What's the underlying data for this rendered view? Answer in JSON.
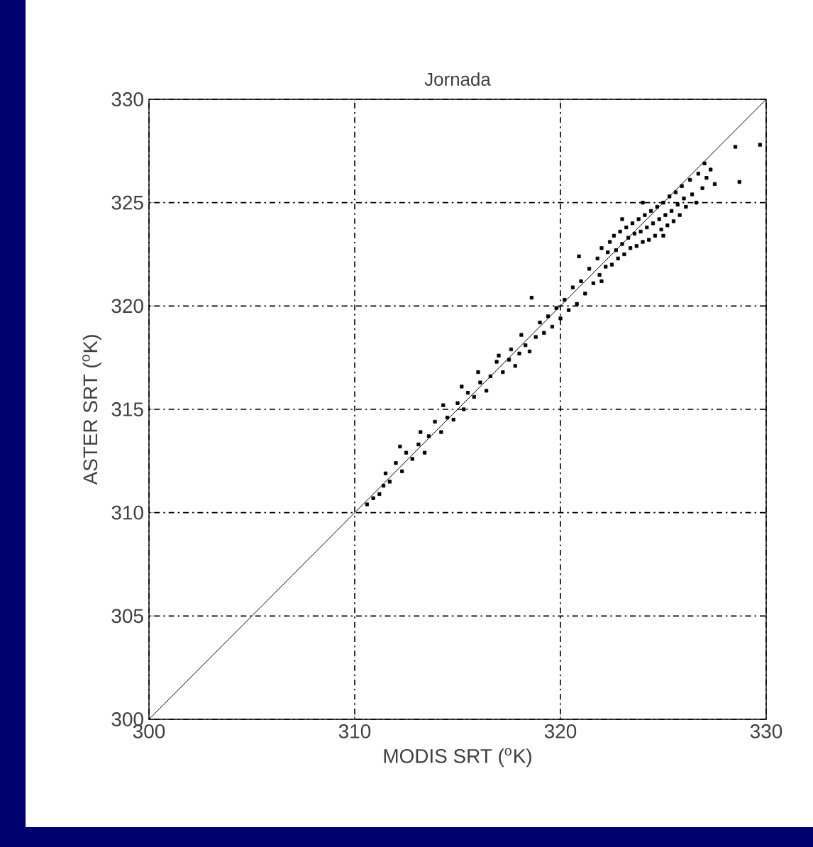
{
  "chart_data": {
    "type": "scatter",
    "title": "Jornada",
    "xlabel": "MODIS SRT ($^{o}$K)",
    "ylabel": "ASTER SRT ($^{o}$K)",
    "xlim": [
      300,
      330
    ],
    "ylim": [
      300,
      330
    ],
    "xticks": [
      300,
      310,
      320,
      330
    ],
    "yticks": [
      300,
      305,
      310,
      315,
      320,
      325,
      330
    ],
    "grid": true,
    "series": [
      {
        "marker": "square",
        "color": "#000000",
        "x": [
          310.6,
          310.9,
          311.2,
          311.4,
          311.7,
          311.5,
          312.0,
          312.3,
          312.5,
          312.2,
          312.8,
          313.1,
          313.4,
          313.2,
          313.6,
          313.9,
          314.2,
          314.5,
          314.3,
          314.8,
          315.0,
          315.3,
          315.5,
          315.2,
          315.8,
          316.1,
          316.4,
          316.0,
          316.6,
          316.9,
          317.2,
          317.0,
          317.5,
          317.8,
          317.6,
          318.0,
          318.3,
          318.1,
          318.5,
          318.6,
          318.8,
          319.0,
          319.2,
          319.4,
          319.6,
          319.8,
          320.0,
          320.2,
          320.4,
          320.6,
          320.8,
          320.9,
          321.0,
          321.2,
          321.4,
          321.6,
          321.8,
          321.9,
          322.0,
          322.2,
          322.3,
          322.4,
          322.5,
          322.6,
          322.7,
          322.8,
          322.9,
          323.0,
          323.1,
          323.2,
          323.3,
          323.4,
          323.5,
          323.6,
          323.7,
          323.8,
          323.9,
          324.0,
          324.1,
          324.2,
          324.3,
          324.4,
          324.5,
          324.6,
          324.7,
          324.8,
          324.9,
          325.0,
          325.1,
          325.2,
          325.3,
          325.4,
          325.5,
          325.6,
          325.7,
          325.8,
          325.9,
          326.0,
          326.1,
          326.3,
          326.4,
          326.6,
          326.7,
          326.9,
          327.1,
          327.3,
          327.5,
          327.0,
          328.5,
          328.7,
          329.7,
          323.0,
          322.0,
          324.0,
          325.0
        ],
        "values": [
          310.4,
          310.7,
          310.9,
          311.3,
          311.5,
          311.9,
          312.4,
          312.0,
          312.9,
          313.2,
          312.6,
          313.3,
          312.9,
          313.9,
          313.7,
          314.4,
          313.9,
          314.6,
          315.2,
          314.5,
          315.3,
          315.0,
          315.8,
          316.1,
          315.6,
          316.3,
          315.9,
          316.8,
          316.6,
          317.3,
          316.8,
          317.6,
          317.4,
          317.1,
          317.9,
          317.7,
          318.1,
          318.6,
          317.8,
          320.4,
          318.5,
          319.2,
          318.7,
          319.5,
          319.0,
          319.9,
          319.4,
          320.3,
          319.8,
          320.9,
          320.1,
          322.4,
          321.2,
          320.6,
          321.8,
          321.1,
          322.3,
          321.5,
          322.8,
          321.9,
          322.6,
          323.1,
          322.0,
          323.4,
          322.7,
          322.3,
          323.6,
          323.0,
          322.5,
          323.8,
          323.3,
          322.8,
          324.0,
          323.5,
          322.9,
          324.2,
          323.6,
          323.1,
          324.4,
          323.8,
          323.2,
          324.6,
          324.0,
          323.4,
          324.8,
          324.2,
          323.7,
          325.0,
          324.4,
          323.9,
          325.3,
          324.6,
          324.1,
          325.5,
          324.9,
          324.4,
          325.8,
          325.2,
          324.8,
          326.1,
          325.4,
          325.0,
          326.4,
          325.7,
          326.2,
          326.6,
          325.9,
          326.9,
          327.7,
          326.0,
          327.8,
          324.2,
          321.2,
          325.0,
          323.4
        ]
      },
      {
        "type": "line",
        "marker": "none",
        "color": "#000000",
        "x": [
          300,
          330
        ],
        "values": [
          300,
          330
        ]
      }
    ]
  }
}
